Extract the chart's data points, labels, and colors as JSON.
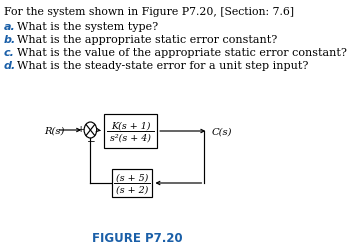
{
  "title_text": "For the system shown in Figure P7.20, [Section: 7.6]",
  "q_a_letter": "a.",
  "q_a_text": "What is the system type?",
  "q_b_letter": "b.",
  "q_b_text": "What is the appropriate static error constant?",
  "q_c_letter": "c.",
  "q_c_text": "What is the value of the appropriate static error constant?",
  "q_d_letter": "d.",
  "q_d_text": "What is the steady-state error for a unit step input?",
  "label_color": "#1a5fa8",
  "text_color": "#000000",
  "figure_label": "FIGURE P7.20",
  "figure_label_color": "#1a5fa8",
  "block1_num": "K(s + 1)",
  "block1_den": "s²(s + 4)",
  "block2_num": "(s + 5)",
  "block2_den": "(s + 2)",
  "R_label": "R(s)",
  "C_label": "C(s)",
  "plus_label": "+",
  "minus_label": "−",
  "bg_color": "#ffffff",
  "title_fontsize": 7.8,
  "q_fontsize": 8.0,
  "diagram_fontsize": 7.0,
  "fig_label_fontsize": 8.5
}
